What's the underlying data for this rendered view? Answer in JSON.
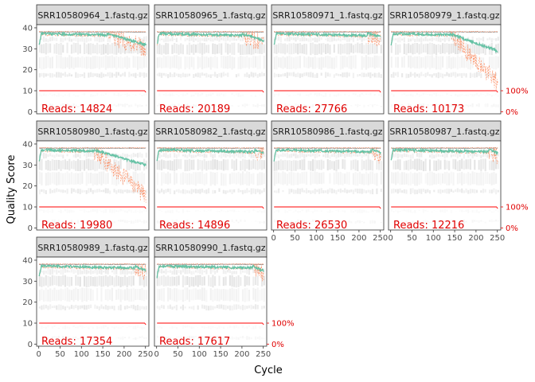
{
  "chart_data": {
    "type": "line",
    "title": "",
    "xlabel": "Cycle",
    "ylabel": "Quality Score",
    "xlim": [
      -5,
      258
    ],
    "ylim": [
      -1,
      41.5
    ],
    "x_ticks": [
      0,
      50,
      100,
      150,
      200,
      250
    ],
    "y_ticks": [
      0,
      10,
      20,
      30,
      40
    ],
    "reads_prefix": "Reads:",
    "percent_axis": {
      "labels": [
        "100%",
        "0%"
      ],
      "values": [
        10,
        0
      ]
    },
    "colors": {
      "mean": "#66c2a5",
      "quartile": "#fc8d62",
      "median": "#8c8c8c",
      "reads_line": "#ff0000",
      "heat": "#d9d9d9",
      "strip_bg": "#d9d9d9",
      "text_red": "#e00000"
    },
    "panels": [
      {
        "sample": "SRR10580964_1.fastq.gz",
        "reads": "14824",
        "mean_end": 32,
        "drop_start": 160,
        "q25_end": 30
      },
      {
        "sample": "SRR10580965_1.fastq.gz",
        "reads": "20189",
        "mean_end": 34,
        "drop_start": 200,
        "q25_end": 32
      },
      {
        "sample": "SRR10580971_1.fastq.gz",
        "reads": "27766",
        "mean_end": 36,
        "drop_start": 220,
        "q25_end": 35
      },
      {
        "sample": "SRR10580979_1.fastq.gz",
        "reads": "10173",
        "mean_end": 29,
        "drop_start": 140,
        "q25_end": 14
      },
      {
        "sample": "SRR10580980_1.fastq.gz",
        "reads": "19980",
        "mean_end": 30,
        "drop_start": 130,
        "q25_end": 15
      },
      {
        "sample": "SRR10580982_1.fastq.gz",
        "reads": "14896",
        "mean_end": 36,
        "drop_start": 230,
        "q25_end": 35
      },
      {
        "sample": "SRR10580986_1.fastq.gz",
        "reads": "26530",
        "mean_end": 36,
        "drop_start": 230,
        "q25_end": 34
      },
      {
        "sample": "SRR10580987_1.fastq.gz",
        "reads": "12216",
        "mean_end": 36,
        "drop_start": 230,
        "q25_end": 35
      },
      {
        "sample": "SRR10580989_1.fastq.gz",
        "reads": "17354",
        "mean_end": 35,
        "drop_start": 225,
        "q25_end": 34
      },
      {
        "sample": "SRR10580990_1.fastq.gz",
        "reads": "17617",
        "mean_end": 35,
        "drop_start": 225,
        "q25_end": 34
      }
    ]
  }
}
